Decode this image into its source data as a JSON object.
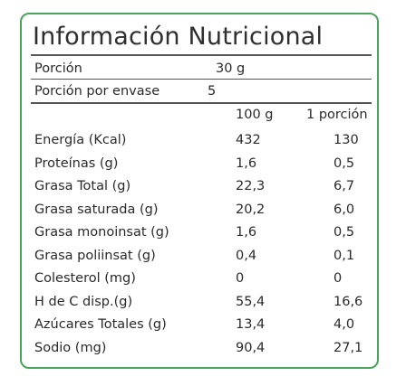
{
  "title": "Información Nutricional",
  "portion": {
    "label": "Porción",
    "value": "30 g"
  },
  "servings": {
    "label": "Porción por envase",
    "value": "5"
  },
  "columns": {
    "per100": "100 g",
    "perPortion": "1 porción"
  },
  "colors": {
    "border": "#4aa35a",
    "text": "#2a2a2a",
    "rule": "#555555"
  },
  "rows": [
    {
      "name": "Energía (Kcal)",
      "per100": "432",
      "perPortion": "130"
    },
    {
      "name": "Proteínas (g)",
      "per100": "1,6",
      "perPortion": "0,5"
    },
    {
      "name": "Grasa Total (g)",
      "per100": "22,3",
      "perPortion": "6,7"
    },
    {
      "name": "Grasa saturada (g)",
      "per100": "20,2",
      "perPortion": "6,0"
    },
    {
      "name": "Grasa monoinsat (g)",
      "per100": "1,6",
      "perPortion": "0,5"
    },
    {
      "name": "Grasa poliinsat (g)",
      "per100": "0,4",
      "perPortion": "0,1"
    },
    {
      "name": "Colesterol (mg)",
      "per100": "0",
      "perPortion": "0"
    },
    {
      "name": "H de C disp.(g)",
      "per100": "55,4",
      "perPortion": "16,6"
    },
    {
      "name": "Azúcares Totales (g)",
      "per100": "13,4",
      "perPortion": "4,0"
    },
    {
      "name": "Sodio (mg)",
      "per100": "90,4",
      "perPortion": "27,1"
    }
  ]
}
